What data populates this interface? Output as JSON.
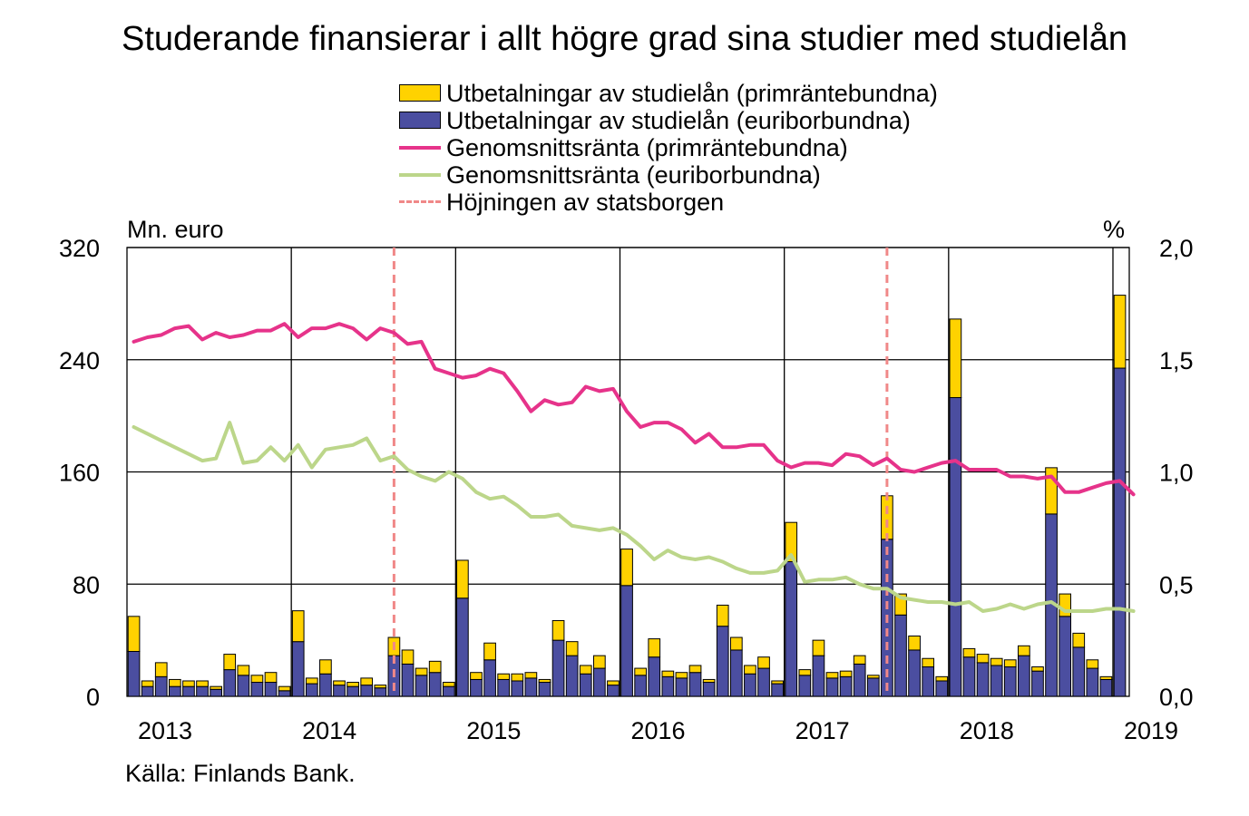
{
  "chart_data": {
    "type": "bar",
    "title": "Studerande finansierar i allt högre grad sina studier med studielån",
    "left_unit": "Mn. euro",
    "right_unit": "%",
    "source": "Källa: Finlands Bank.",
    "x_labels": [
      "2013",
      "2014",
      "2015",
      "2016",
      "2017",
      "2018",
      "2019"
    ],
    "y_left": {
      "min": 0,
      "max": 320,
      "ticks": [
        "0",
        "80",
        "160",
        "240",
        "320"
      ]
    },
    "y_right": {
      "min": 0,
      "max": 2,
      "ticks": [
        "0,0",
        "0,5",
        "1,0",
        "1,5",
        "2,0"
      ]
    },
    "grid": true,
    "legend_position": "top",
    "colors": {
      "euribor_bar": "#4b4ea0",
      "prime_bar": "#ffd200",
      "prime_rate": "#e6338a",
      "euribor_rate": "#bcd68a",
      "guarantee_marker": "#f08888"
    },
    "legend": [
      {
        "label": "Utbetalningar av studielån (primräntebundna)",
        "kind": "bar",
        "color": "#ffd200"
      },
      {
        "label": "Utbetalningar av studielån (euriborbundna)",
        "kind": "bar",
        "color": "#4b4ea0"
      },
      {
        "label": "Genomsnittsränta (primräntebundna)",
        "kind": "line",
        "color": "#e6338a"
      },
      {
        "label": "Genomsnittsränta (euriborbundna)",
        "kind": "line",
        "color": "#bcd68a"
      },
      {
        "label": "Höjningen av statsborgen",
        "kind": "dash",
        "color": "#f08888"
      }
    ],
    "start_period": "2013-01",
    "series": [
      {
        "name": "Utbetalningar av studielån (euriborbundna)",
        "axis": "left",
        "type": "bar",
        "values": [
          32,
          7,
          14,
          7,
          7,
          7,
          5,
          19,
          15,
          10,
          10,
          4,
          39,
          9,
          16,
          8,
          7,
          8,
          6,
          29,
          23,
          15,
          17,
          7,
          70,
          12,
          26,
          12,
          11,
          13,
          10,
          40,
          29,
          16,
          20,
          8,
          79,
          15,
          28,
          14,
          13,
          17,
          10,
          50,
          33,
          16,
          20,
          9,
          96,
          15,
          29,
          13,
          14,
          23,
          13,
          112,
          58,
          33,
          21,
          11,
          213,
          28,
          24,
          22,
          21,
          29,
          18,
          130,
          57,
          35,
          20,
          12,
          234
        ]
      },
      {
        "name": "Utbetalningar av studielån (primräntebundna)",
        "axis": "left",
        "type": "bar",
        "values": [
          25,
          4,
          10,
          5,
          4,
          4,
          2,
          11,
          7,
          5,
          7,
          3,
          22,
          4,
          10,
          3,
          3,
          5,
          2,
          13,
          10,
          5,
          8,
          3,
          27,
          5,
          12,
          4,
          5,
          4,
          2,
          14,
          10,
          6,
          9,
          3,
          26,
          5,
          13,
          4,
          4,
          5,
          2,
          15,
          9,
          6,
          8,
          2,
          28,
          4,
          11,
          4,
          4,
          6,
          2,
          31,
          15,
          10,
          6,
          3,
          56,
          6,
          6,
          5,
          5,
          7,
          3,
          33,
          16,
          10,
          6,
          2,
          52
        ]
      },
      {
        "name": "Genomsnittsränta (primräntebundna)",
        "axis": "right",
        "type": "line",
        "values": [
          1.58,
          1.6,
          1.61,
          1.64,
          1.65,
          1.59,
          1.62,
          1.6,
          1.61,
          1.63,
          1.63,
          1.66,
          1.6,
          1.64,
          1.64,
          1.66,
          1.64,
          1.59,
          1.64,
          1.62,
          1.57,
          1.58,
          1.46,
          1.44,
          1.42,
          1.43,
          1.46,
          1.44,
          1.36,
          1.27,
          1.32,
          1.3,
          1.31,
          1.38,
          1.36,
          1.37,
          1.27,
          1.2,
          1.22,
          1.22,
          1.19,
          1.13,
          1.17,
          1.11,
          1.11,
          1.12,
          1.12,
          1.05,
          1.02,
          1.04,
          1.04,
          1.03,
          1.08,
          1.07,
          1.03,
          1.06,
          1.01,
          1.0,
          1.02,
          1.04,
          1.05,
          1.01,
          1.01,
          1.01,
          0.98,
          0.98,
          0.97,
          0.98,
          0.91,
          0.91,
          0.93,
          0.95,
          0.96,
          0.9
        ]
      },
      {
        "name": "Genomsnittsränta (euriborbundna)",
        "axis": "right",
        "type": "line",
        "values": [
          1.2,
          1.17,
          1.14,
          1.11,
          1.08,
          1.05,
          1.06,
          1.22,
          1.04,
          1.05,
          1.11,
          1.05,
          1.12,
          1.02,
          1.1,
          1.11,
          1.12,
          1.15,
          1.05,
          1.07,
          1.01,
          0.98,
          0.96,
          1.0,
          0.97,
          0.91,
          0.88,
          0.89,
          0.85,
          0.8,
          0.8,
          0.81,
          0.76,
          0.75,
          0.74,
          0.75,
          0.72,
          0.67,
          0.61,
          0.65,
          0.62,
          0.61,
          0.62,
          0.6,
          0.57,
          0.55,
          0.55,
          0.56,
          0.63,
          0.51,
          0.52,
          0.52,
          0.53,
          0.5,
          0.48,
          0.48,
          0.44,
          0.43,
          0.42,
          0.42,
          0.41,
          0.42,
          0.38,
          0.39,
          0.41,
          0.39,
          0.41,
          0.42,
          0.38,
          0.38,
          0.38,
          0.39,
          0.39,
          0.38
        ]
      }
    ],
    "guarantee_markers": [
      "2014-08",
      "2017-08"
    ]
  }
}
